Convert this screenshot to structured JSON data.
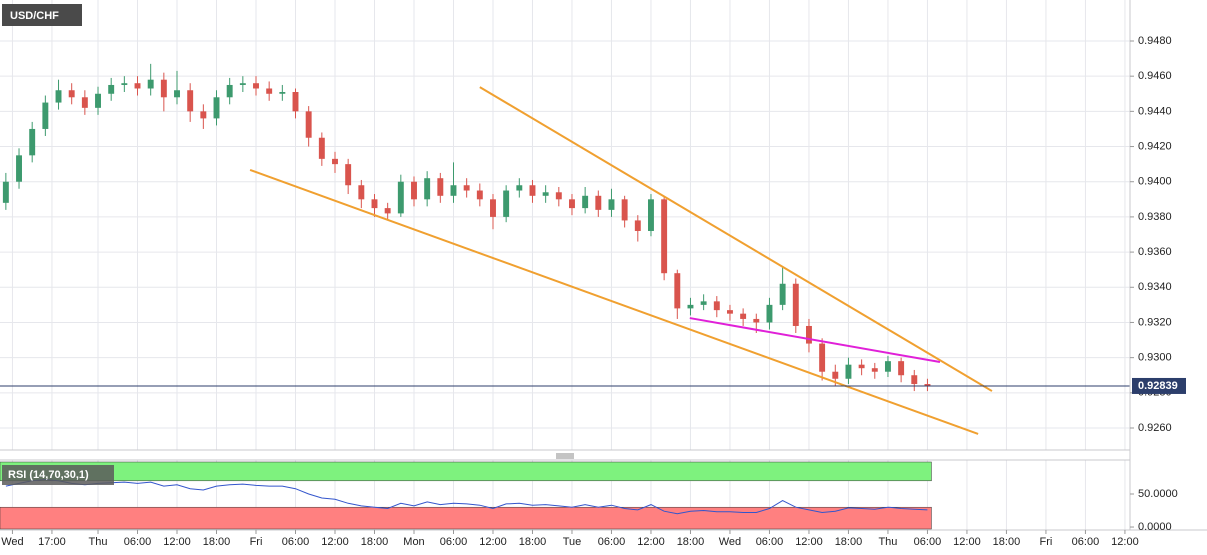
{
  "chart_data": [
    {
      "type": "candlestick",
      "title": "USD/CHF",
      "x": [
        -14,
        -12,
        -10,
        -8,
        -6,
        -4,
        -2,
        0,
        2,
        4,
        6,
        8,
        10,
        12,
        14,
        16,
        18,
        20,
        22,
        24,
        26,
        28,
        30,
        32,
        34,
        36,
        38,
        40,
        42,
        44,
        46,
        48,
        50,
        52,
        54,
        56,
        58,
        60,
        62,
        64,
        66,
        68,
        70,
        72,
        74,
        76,
        78,
        80,
        82,
        84,
        86,
        88,
        90,
        92,
        94,
        96,
        98,
        100,
        102,
        104,
        106,
        108,
        110,
        112,
        114,
        116,
        118,
        120,
        122,
        124,
        126
      ],
      "open": [
        0.9388,
        0.94,
        0.9415,
        0.943,
        0.9445,
        0.9452,
        0.9448,
        0.9442,
        0.945,
        0.9455,
        0.9456,
        0.9453,
        0.9458,
        0.9448,
        0.9452,
        0.944,
        0.9436,
        0.9448,
        0.9455,
        0.9456,
        0.9453,
        0.945,
        0.9451,
        0.944,
        0.9425,
        0.9413,
        0.941,
        0.9398,
        0.939,
        0.9385,
        0.9382,
        0.94,
        0.939,
        0.9402,
        0.9392,
        0.9398,
        0.9395,
        0.939,
        0.938,
        0.9395,
        0.9398,
        0.9392,
        0.9394,
        0.939,
        0.9385,
        0.9392,
        0.9384,
        0.939,
        0.9378,
        0.9372,
        0.939,
        0.9348,
        0.9328,
        0.933,
        0.9332,
        0.9327,
        0.9325,
        0.9322,
        0.932,
        0.933,
        0.9342,
        0.9318,
        0.9308,
        0.9292,
        0.9288,
        0.9296,
        0.9294,
        0.9292,
        0.9298,
        0.929,
        0.9285
      ],
      "high": [
        0.9405,
        0.9419,
        0.9434,
        0.9449,
        0.9458,
        0.9456,
        0.9452,
        0.9454,
        0.9459,
        0.946,
        0.946,
        0.9467,
        0.9462,
        0.9463,
        0.9456,
        0.9444,
        0.9452,
        0.9459,
        0.946,
        0.946,
        0.9457,
        0.9455,
        0.9453,
        0.9443,
        0.9428,
        0.9417,
        0.9413,
        0.9401,
        0.9393,
        0.9388,
        0.9404,
        0.9403,
        0.9406,
        0.9405,
        0.9411,
        0.9402,
        0.9399,
        0.9393,
        0.9398,
        0.9402,
        0.9401,
        0.9398,
        0.9397,
        0.9393,
        0.9397,
        0.9395,
        0.9396,
        0.9392,
        0.9381,
        0.9393,
        0.9392,
        0.935,
        0.9334,
        0.9336,
        0.9335,
        0.933,
        0.9328,
        0.9325,
        0.9334,
        0.9352,
        0.9345,
        0.9322,
        0.9311,
        0.9296,
        0.93,
        0.9299,
        0.9297,
        0.9301,
        0.93,
        0.9293,
        0.9288
      ],
      "low": [
        0.9384,
        0.9396,
        0.9411,
        0.9426,
        0.9441,
        0.9444,
        0.9438,
        0.9438,
        0.9446,
        0.9451,
        0.9449,
        0.9449,
        0.944,
        0.9444,
        0.9434,
        0.943,
        0.9432,
        0.9444,
        0.9451,
        0.9449,
        0.9446,
        0.9446,
        0.9436,
        0.942,
        0.9409,
        0.9405,
        0.9393,
        0.9385,
        0.938,
        0.9378,
        0.938,
        0.9386,
        0.9386,
        0.9388,
        0.9388,
        0.9391,
        0.9386,
        0.9373,
        0.9377,
        0.9391,
        0.9388,
        0.9388,
        0.9386,
        0.9381,
        0.9382,
        0.938,
        0.938,
        0.9374,
        0.9366,
        0.9369,
        0.9344,
        0.9322,
        0.9324,
        0.9327,
        0.9323,
        0.9321,
        0.9318,
        0.9314,
        0.9316,
        0.9327,
        0.9314,
        0.9303,
        0.9287,
        0.9284,
        0.9285,
        0.929,
        0.9288,
        0.9289,
        0.9286,
        0.9281,
        0.9281
      ],
      "close": [
        0.94,
        0.9415,
        0.943,
        0.9445,
        0.9452,
        0.9448,
        0.9442,
        0.945,
        0.9455,
        0.9456,
        0.9453,
        0.9458,
        0.9448,
        0.9452,
        0.944,
        0.9436,
        0.9448,
        0.9455,
        0.9456,
        0.9453,
        0.945,
        0.9451,
        0.944,
        0.9425,
        0.9413,
        0.941,
        0.9398,
        0.939,
        0.9385,
        0.9382,
        0.94,
        0.939,
        0.9402,
        0.9392,
        0.9398,
        0.9395,
        0.939,
        0.938,
        0.9395,
        0.9398,
        0.9392,
        0.9394,
        0.939,
        0.9385,
        0.9392,
        0.9384,
        0.939,
        0.9378,
        0.9372,
        0.939,
        0.9348,
        0.9328,
        0.933,
        0.9332,
        0.9327,
        0.9325,
        0.9322,
        0.932,
        0.933,
        0.9342,
        0.9318,
        0.9308,
        0.9292,
        0.9288,
        0.9296,
        0.9294,
        0.9292,
        0.9298,
        0.929,
        0.9285,
        0.92839
      ],
      "up_color": "#3d9a6e",
      "down_color": "#d9544d",
      "xlim": [
        -14.89,
        156.77
      ],
      "xticks": [
        {
          "value": -13,
          "label": "Wed"
        },
        {
          "value": -7,
          "label": "17:00"
        },
        {
          "value": 0,
          "label": "Thu"
        },
        {
          "value": 6,
          "label": "06:00"
        },
        {
          "value": 12,
          "label": "12:00"
        },
        {
          "value": 18,
          "label": "18:00"
        },
        {
          "value": 24,
          "label": "Fri"
        },
        {
          "value": 30,
          "label": "06:00"
        },
        {
          "value": 36,
          "label": "12:00"
        },
        {
          "value": 42,
          "label": "18:00"
        },
        {
          "value": 48,
          "label": "Mon"
        },
        {
          "value": 54,
          "label": "06:00"
        },
        {
          "value": 60,
          "label": "12:00"
        },
        {
          "value": 66,
          "label": "18:00"
        },
        {
          "value": 72,
          "label": "Tue"
        },
        {
          "value": 78,
          "label": "06:00"
        },
        {
          "value": 84,
          "label": "12:00"
        },
        {
          "value": 90,
          "label": "18:00"
        },
        {
          "value": 96,
          "label": "Wed"
        },
        {
          "value": 102,
          "label": "06:00"
        },
        {
          "value": 108,
          "label": "12:00"
        },
        {
          "value": 114,
          "label": "18:00"
        },
        {
          "value": 120,
          "label": "Thu"
        },
        {
          "value": 126,
          "label": "06:00"
        },
        {
          "value": 132,
          "label": "12:00"
        },
        {
          "value": 138,
          "label": "18:00"
        },
        {
          "value": 144,
          "label": "Fri"
        },
        {
          "value": 150,
          "label": "06:00"
        },
        {
          "value": 156,
          "label": "12:00"
        }
      ],
      "ylim": [
        0.92475,
        0.95033
      ],
      "yticks": [
        {
          "value": 0.926,
          "label": "0.9260"
        },
        {
          "value": 0.928,
          "label": "0.9280"
        },
        {
          "value": 0.93,
          "label": "0.9300"
        },
        {
          "value": 0.932,
          "label": "0.9320"
        },
        {
          "value": 0.934,
          "label": "0.9340"
        },
        {
          "value": 0.936,
          "label": "0.9360"
        },
        {
          "value": 0.938,
          "label": "0.9380"
        },
        {
          "value": 0.94,
          "label": "0.9400"
        },
        {
          "value": 0.942,
          "label": "0.9420"
        },
        {
          "value": 0.944,
          "label": "0.9440"
        },
        {
          "value": 0.946,
          "label": "0.9460"
        },
        {
          "value": 0.948,
          "label": "0.9480"
        }
      ],
      "grid": true,
      "last_price": 0.92839,
      "last_price_color": "#2c3e6b",
      "trend_lines": [
        {
          "color": "#f0a030",
          "points": [
            [
              58.0,
              0.94538
            ],
            [
              135.8,
              0.9281
            ]
          ]
        },
        {
          "color": "#f0a030",
          "points": [
            [
              23.1,
              0.94067
            ],
            [
              133.7,
              0.92566
            ]
          ]
        },
        {
          "color": "#e020d8",
          "points": [
            [
              89.9,
              0.93225
            ],
            [
              127.9,
              0.92975
            ]
          ]
        }
      ]
    },
    {
      "type": "line",
      "title": "RSI (14,70,30,1)",
      "color": "#3355cc",
      "values": [
        62,
        66,
        70,
        72,
        70,
        66,
        64,
        66,
        67,
        68,
        66,
        68,
        62,
        64,
        58,
        56,
        62,
        64,
        65,
        63,
        62,
        62,
        58,
        50,
        44,
        42,
        36,
        32,
        30,
        28,
        36,
        32,
        38,
        34,
        36,
        35,
        33,
        28,
        35,
        36,
        33,
        34,
        32,
        30,
        34,
        30,
        33,
        28,
        26,
        34,
        24,
        20,
        24,
        25,
        23,
        23,
        22,
        22,
        28,
        40,
        30,
        26,
        22,
        24,
        29,
        28,
        27,
        30,
        28,
        27,
        26
      ],
      "ylim": [
        -4.5,
        101.5
      ],
      "yticks": [
        {
          "value": 50,
          "label": "50.0000"
        },
        {
          "value": 0,
          "label": "0.0000"
        }
      ],
      "upper_band": 70,
      "upper_color": "#7ef27e",
      "lower_band": 30,
      "lower_color": "#ff8080"
    }
  ]
}
